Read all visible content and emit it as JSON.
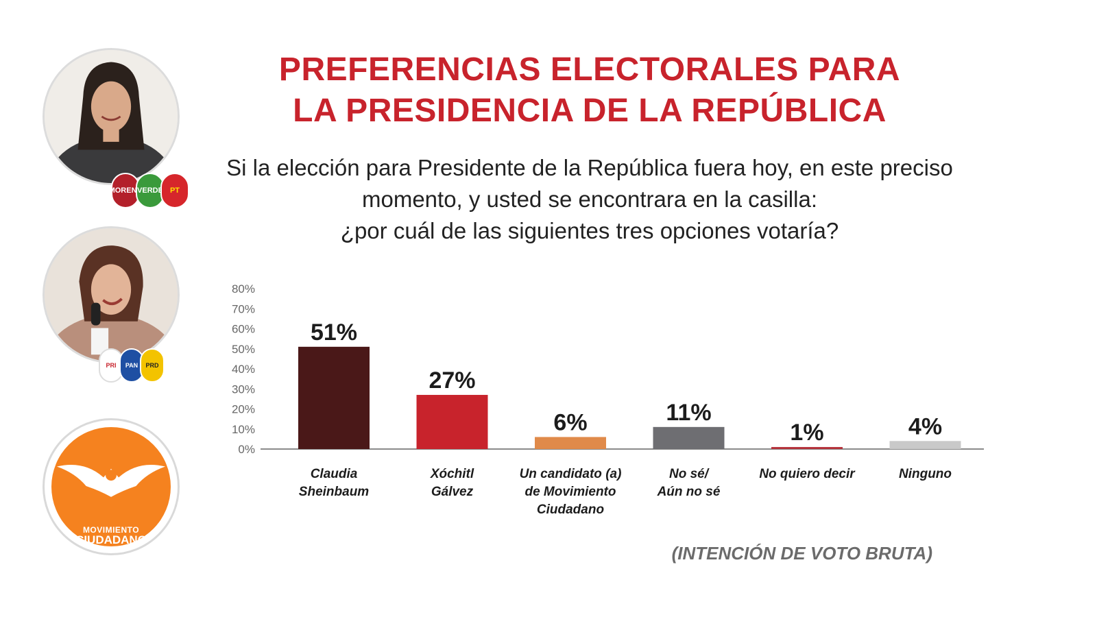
{
  "title": {
    "line1": "PREFERENCIAS ELECTORALES PARA",
    "line2": "LA PRESIDENCIA DE LA REPÚBLICA"
  },
  "question": {
    "line1": "Si la elección para Presidente de la República fuera hoy, en este preciso",
    "line2": "momento, y usted se encontrara en la casilla:",
    "line3": "¿por cuál de las siguientes tres opciones votaría?"
  },
  "badges": {
    "group1": [
      "MORENA",
      "VERDE",
      "PT"
    ],
    "group2": [
      "PRI",
      "PAN",
      "PRD"
    ]
  },
  "logo": {
    "line1": "MOVIMIENTO",
    "line2": "CIUDADANO"
  },
  "footnote": "(INTENCIÓN DE VOTO BRUTA)",
  "colors": {
    "title": "#c8232c",
    "orange": "#f5821f"
  },
  "chart_data": {
    "type": "bar",
    "categories": [
      [
        "Claudia",
        "Sheinbaum"
      ],
      [
        "Xóchitl",
        "Gálvez"
      ],
      [
        "Un candidato (a)",
        "de Movimiento",
        "Ciudadano"
      ],
      [
        "No sé/",
        "Aún no sé"
      ],
      [
        "No quiero decir"
      ],
      [
        "Ninguno"
      ]
    ],
    "values": [
      51,
      27,
      6,
      11,
      1,
      4
    ],
    "value_labels": [
      "51%",
      "27%",
      "6%",
      "11%",
      "1%",
      "4%"
    ],
    "bar_colors": [
      "#4a1818",
      "#c8232c",
      "#e08a4a",
      "#6e6e72",
      "#b5323a",
      "#c9c9c9"
    ],
    "ylim": [
      0,
      80
    ],
    "yticks": [
      "0%",
      "10%",
      "20%",
      "30%",
      "40%",
      "50%",
      "60%",
      "70%",
      "80%"
    ],
    "grid": false
  }
}
